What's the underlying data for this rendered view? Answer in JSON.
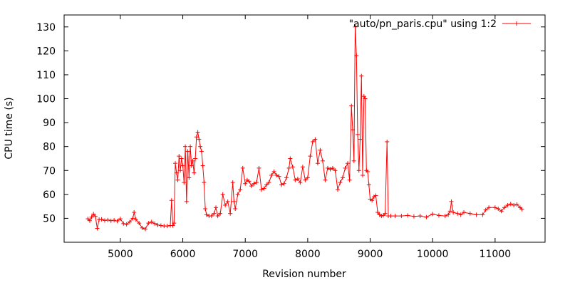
{
  "chart_data": {
    "type": "line",
    "xlabel": "Revision number",
    "ylabel": "CPU time (s)",
    "xlim": [
      4100,
      11800
    ],
    "ylim": [
      40,
      135
    ],
    "xticks": [
      5000,
      6000,
      7000,
      8000,
      9000,
      10000,
      11000
    ],
    "yticks": [
      50,
      60,
      70,
      80,
      90,
      100,
      110,
      120,
      130
    ],
    "grid": false,
    "legend_position": "top-right",
    "series": [
      {
        "name": "\"auto/pn_paris.cpu\" using 1:2",
        "color": "#ff0000",
        "points": [
          [
            4480,
            49.8
          ],
          [
            4510,
            49.0
          ],
          [
            4540,
            50.5
          ],
          [
            4570,
            51.8
          ],
          [
            4600,
            50.8
          ],
          [
            4630,
            45.8
          ],
          [
            4660,
            49.5
          ],
          [
            4700,
            49.6
          ],
          [
            4750,
            49.1
          ],
          [
            4800,
            49.3
          ],
          [
            4850,
            49.0
          ],
          [
            4900,
            49.2
          ],
          [
            4950,
            48.9
          ],
          [
            5000,
            49.8
          ],
          [
            5050,
            47.8
          ],
          [
            5100,
            47.5
          ],
          [
            5150,
            48.5
          ],
          [
            5200,
            50.0
          ],
          [
            5220,
            52.5
          ],
          [
            5250,
            49.5
          ],
          [
            5300,
            48.0
          ],
          [
            5350,
            46.0
          ],
          [
            5400,
            45.5
          ],
          [
            5450,
            48.0
          ],
          [
            5500,
            48.5
          ],
          [
            5550,
            47.8
          ],
          [
            5600,
            47.2
          ],
          [
            5650,
            47.0
          ],
          [
            5700,
            46.8
          ],
          [
            5750,
            46.8
          ],
          [
            5800,
            47.0
          ],
          [
            5820,
            57.5
          ],
          [
            5840,
            47.0
          ],
          [
            5860,
            48.0
          ],
          [
            5880,
            73.0
          ],
          [
            5900,
            69.0
          ],
          [
            5920,
            66.0
          ],
          [
            5940,
            76.0
          ],
          [
            5960,
            70.0
          ],
          [
            5980,
            75.0
          ],
          [
            6000,
            72.0
          ],
          [
            6020,
            65.0
          ],
          [
            6040,
            80.0
          ],
          [
            6060,
            57.0
          ],
          [
            6080,
            78.0
          ],
          [
            6100,
            67.0
          ],
          [
            6120,
            80.0
          ],
          [
            6140,
            72.0
          ],
          [
            6160,
            74.0
          ],
          [
            6180,
            69.0
          ],
          [
            6200,
            75.0
          ],
          [
            6220,
            84.0
          ],
          [
            6240,
            86.0
          ],
          [
            6260,
            83.0
          ],
          [
            6280,
            80.0
          ],
          [
            6300,
            78.0
          ],
          [
            6320,
            72.0
          ],
          [
            6340,
            65.0
          ],
          [
            6360,
            54.0
          ],
          [
            6380,
            51.5
          ],
          [
            6420,
            51.0
          ],
          [
            6460,
            51.0
          ],
          [
            6500,
            52.0
          ],
          [
            6530,
            54.5
          ],
          [
            6560,
            51.0
          ],
          [
            6600,
            52.0
          ],
          [
            6640,
            60.0
          ],
          [
            6680,
            55.5
          ],
          [
            6720,
            57.0
          ],
          [
            6760,
            52.0
          ],
          [
            6800,
            65.0
          ],
          [
            6820,
            57.0
          ],
          [
            6840,
            54.0
          ],
          [
            6880,
            60.0
          ],
          [
            6920,
            62.0
          ],
          [
            6960,
            71.0
          ],
          [
            7000,
            64.5
          ],
          [
            7030,
            66.0
          ],
          [
            7060,
            65.5
          ],
          [
            7100,
            63.5
          ],
          [
            7140,
            64.5
          ],
          [
            7180,
            65.0
          ],
          [
            7220,
            71.0
          ],
          [
            7260,
            62.0
          ],
          [
            7300,
            62.5
          ],
          [
            7340,
            64.0
          ],
          [
            7380,
            65.0
          ],
          [
            7420,
            68.0
          ],
          [
            7460,
            69.5
          ],
          [
            7500,
            68.0
          ],
          [
            7540,
            67.5
          ],
          [
            7580,
            64.0
          ],
          [
            7620,
            64.5
          ],
          [
            7660,
            67.0
          ],
          [
            7700,
            71.0
          ],
          [
            7720,
            75.0
          ],
          [
            7760,
            71.5
          ],
          [
            7800,
            66.0
          ],
          [
            7840,
            66.5
          ],
          [
            7880,
            65.0
          ],
          [
            7920,
            71.5
          ],
          [
            7960,
            66.0
          ],
          [
            8000,
            67.0
          ],
          [
            8040,
            76.0
          ],
          [
            8080,
            82.0
          ],
          [
            8120,
            83.0
          ],
          [
            8160,
            73.0
          ],
          [
            8200,
            78.5
          ],
          [
            8240,
            74.0
          ],
          [
            8280,
            66.0
          ],
          [
            8320,
            71.0
          ],
          [
            8360,
            70.5
          ],
          [
            8400,
            71.0
          ],
          [
            8440,
            70.0
          ],
          [
            8480,
            62.0
          ],
          [
            8520,
            65.0
          ],
          [
            8560,
            67.0
          ],
          [
            8600,
            71.0
          ],
          [
            8640,
            73.0
          ],
          [
            8670,
            66.0
          ],
          [
            8700,
            97.0
          ],
          [
            8720,
            87.0
          ],
          [
            8740,
            74.0
          ],
          [
            8760,
            130.0
          ],
          [
            8780,
            118.0
          ],
          [
            8800,
            85.0
          ],
          [
            8820,
            70.0
          ],
          [
            8840,
            83.0
          ],
          [
            8860,
            109.5
          ],
          [
            8880,
            68.0
          ],
          [
            8900,
            101.0
          ],
          [
            8920,
            100.0
          ],
          [
            8940,
            70.0
          ],
          [
            8960,
            69.5
          ],
          [
            8980,
            64.0
          ],
          [
            9000,
            58.0
          ],
          [
            9030,
            57.5
          ],
          [
            9060,
            59.0
          ],
          [
            9090,
            59.5
          ],
          [
            9120,
            52.5
          ],
          [
            9150,
            51.5
          ],
          [
            9180,
            51.0
          ],
          [
            9210,
            51.2
          ],
          [
            9240,
            52.0
          ],
          [
            9270,
            82.0
          ],
          [
            9290,
            51.0
          ],
          [
            9330,
            51.0
          ],
          [
            9400,
            51.0
          ],
          [
            9500,
            51.0
          ],
          [
            9600,
            51.2
          ],
          [
            9700,
            50.8
          ],
          [
            9800,
            51.0
          ],
          [
            9900,
            50.5
          ],
          [
            10000,
            51.8
          ],
          [
            10100,
            51.2
          ],
          [
            10200,
            51.0
          ],
          [
            10250,
            51.5
          ],
          [
            10280,
            53.0
          ],
          [
            10300,
            57.0
          ],
          [
            10330,
            52.5
          ],
          [
            10400,
            52.0
          ],
          [
            10450,
            51.5
          ],
          [
            10500,
            52.5
          ],
          [
            10600,
            52.0
          ],
          [
            10700,
            51.5
          ],
          [
            10800,
            51.5
          ],
          [
            10850,
            53.5
          ],
          [
            10900,
            54.5
          ],
          [
            11000,
            54.5
          ],
          [
            11050,
            54.0
          ],
          [
            11100,
            53.0
          ],
          [
            11150,
            54.5
          ],
          [
            11200,
            55.5
          ],
          [
            11250,
            56.0
          ],
          [
            11300,
            55.5
          ],
          [
            11350,
            55.8
          ],
          [
            11400,
            54.5
          ],
          [
            11430,
            53.8
          ]
        ]
      }
    ]
  }
}
